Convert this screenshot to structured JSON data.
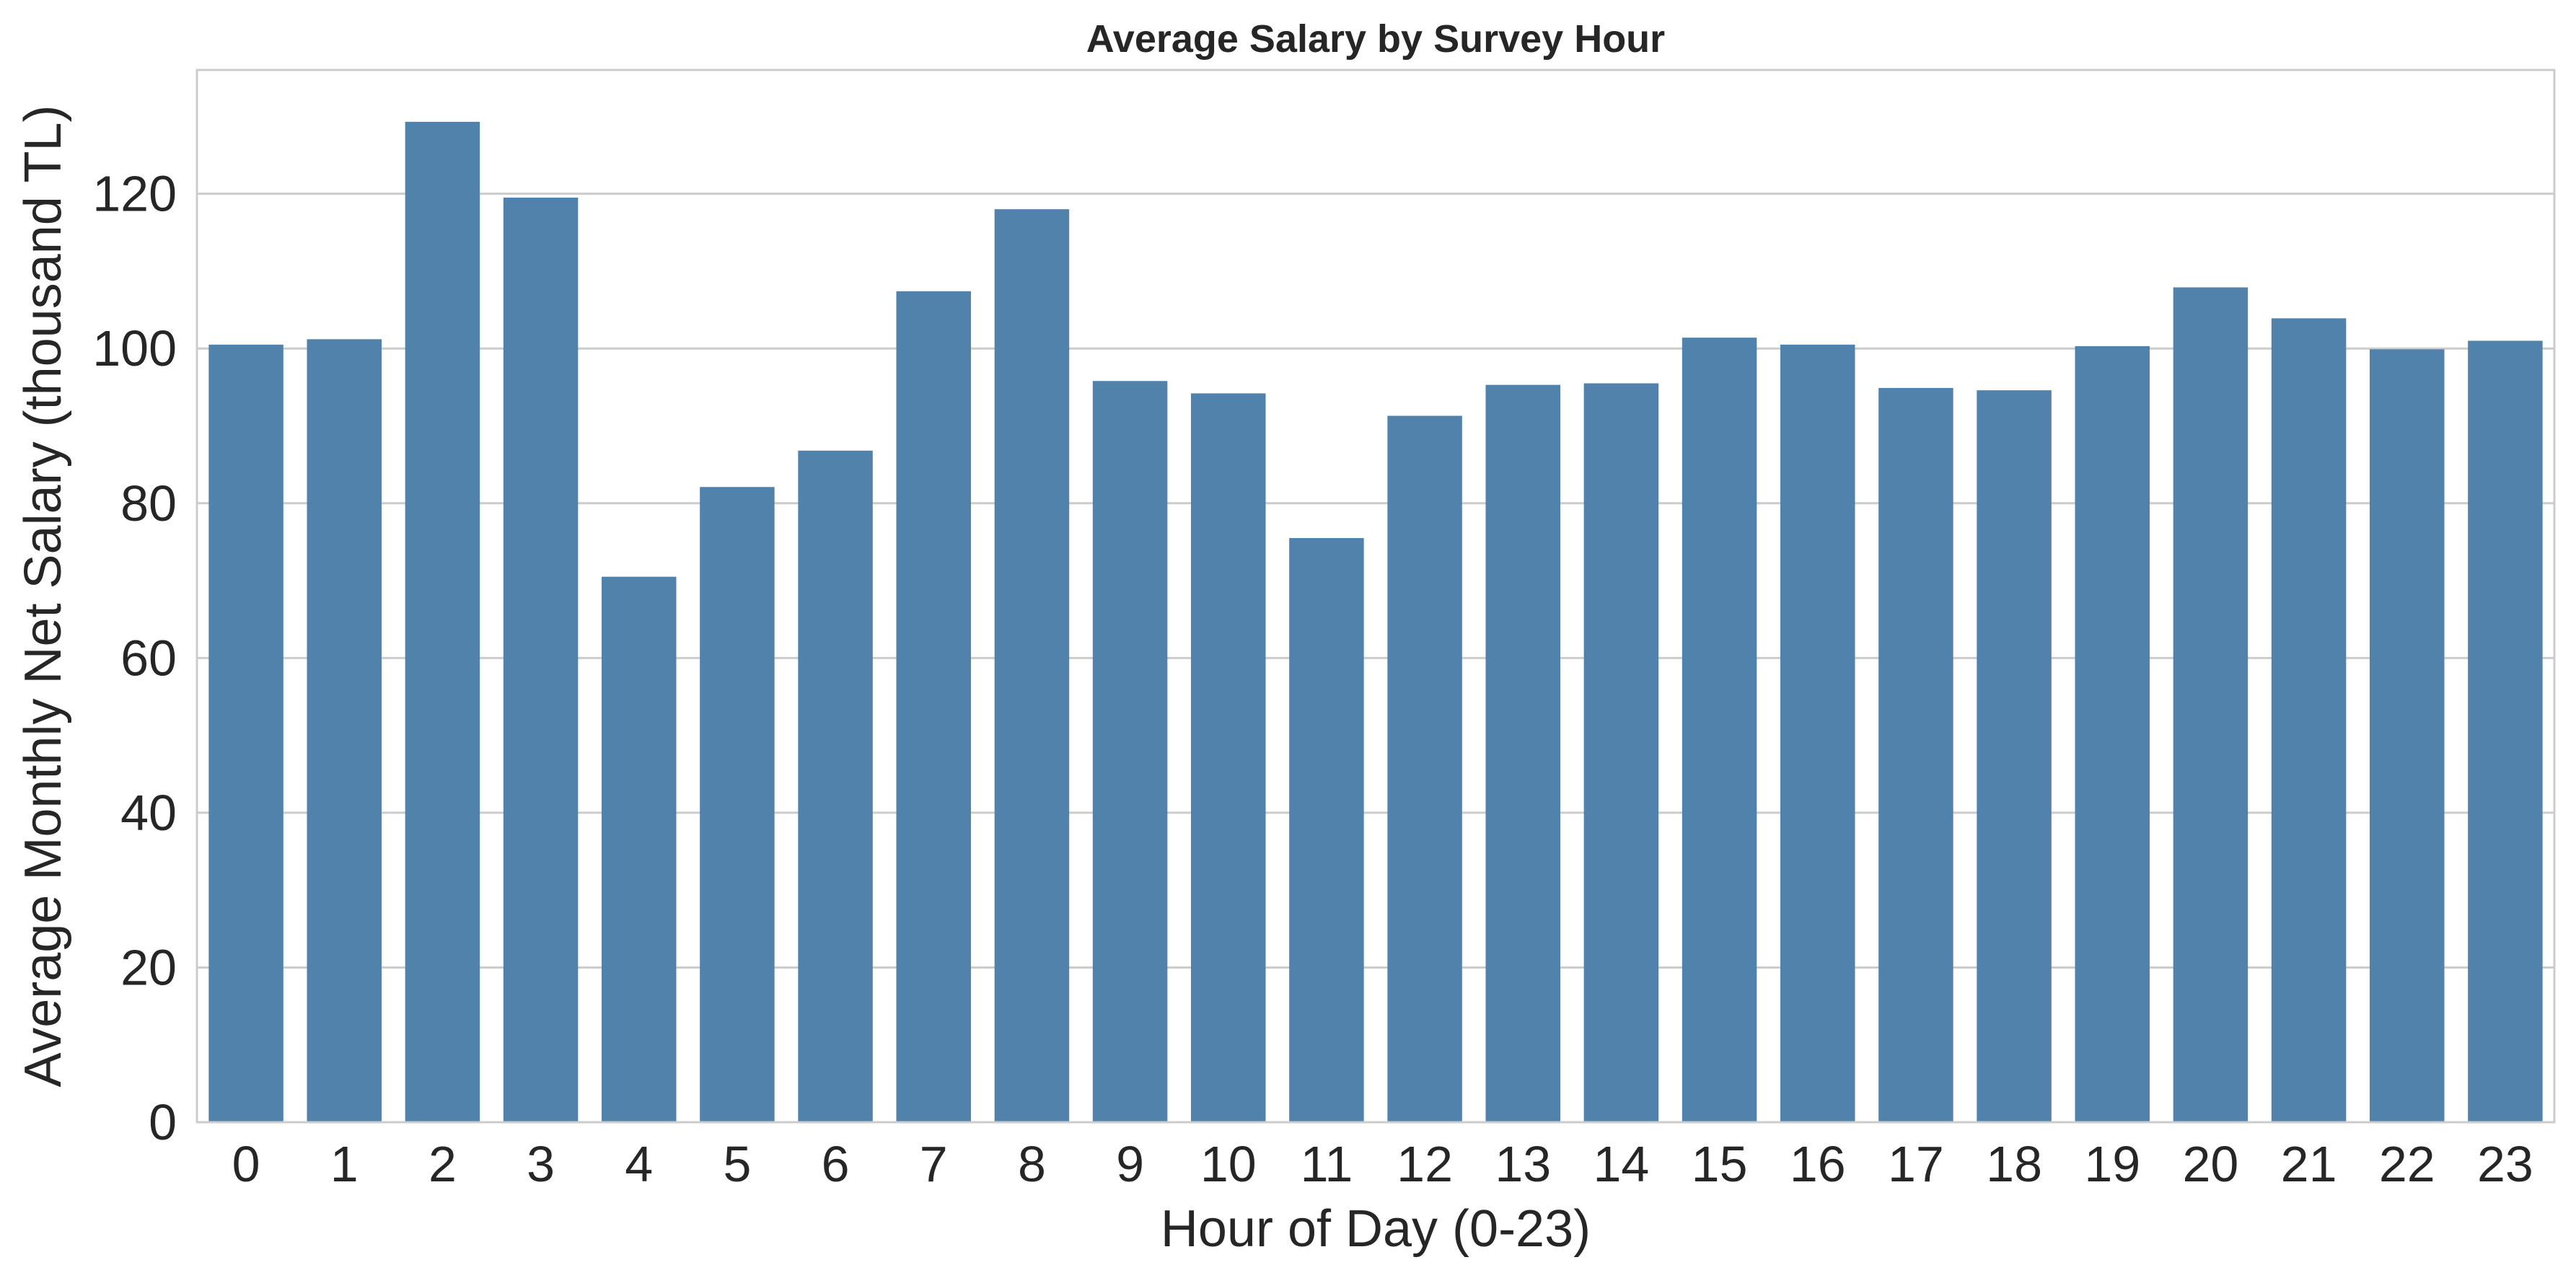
{
  "chart_data": {
    "type": "bar",
    "title": "Average Salary by Survey Hour",
    "xlabel": "Hour of Day (0-23)",
    "ylabel": "Average Monthly Net Salary (thousand TL)",
    "categories": [
      "0",
      "1",
      "2",
      "3",
      "4",
      "5",
      "6",
      "7",
      "8",
      "9",
      "10",
      "11",
      "12",
      "13",
      "14",
      "15",
      "16",
      "17",
      "18",
      "19",
      "20",
      "21",
      "22",
      "23"
    ],
    "values": [
      100.5,
      101.2,
      129.3,
      119.5,
      70.5,
      82.1,
      86.8,
      107.4,
      118.0,
      95.8,
      94.2,
      75.5,
      91.3,
      95.3,
      95.5,
      101.4,
      100.5,
      94.9,
      94.6,
      100.3,
      107.9,
      103.9,
      99.9,
      101.0
    ],
    "yticks": [
      0,
      20,
      40,
      60,
      80,
      100,
      120
    ],
    "ylim": [
      0,
      136
    ],
    "grid": "horizontal",
    "bar_color": "#5182AB",
    "grid_color": "#CCCCCC",
    "text_color": "#262626"
  }
}
